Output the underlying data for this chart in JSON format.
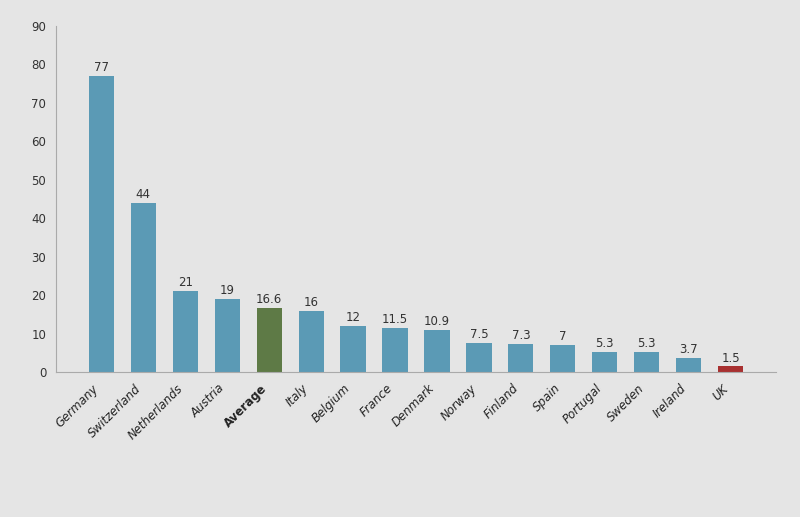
{
  "categories": [
    "Germany",
    "Switzerland",
    "Netherlands",
    "Austria",
    "Average",
    "Italy",
    "Belgium",
    "France",
    "Denmark",
    "Norway",
    "Finland",
    "Spain",
    "Portugal",
    "Sweden",
    "Ireland",
    "UK"
  ],
  "values": [
    77,
    44,
    21,
    19,
    16.6,
    16,
    12,
    11.5,
    10.9,
    7.5,
    7.3,
    7,
    5.3,
    5.3,
    3.7,
    1.5
  ],
  "labels": [
    "77",
    "44",
    "21",
    "19",
    "16.6",
    "16",
    "12",
    "11.5",
    "10.9",
    "7.5",
    "7.3",
    "7",
    "5.3",
    "5.3",
    "3.7",
    "1.5"
  ],
  "bar_colors": [
    "#5b9ab5",
    "#5b9ab5",
    "#5b9ab5",
    "#5b9ab5",
    "#5e7a46",
    "#5b9ab5",
    "#5b9ab5",
    "#5b9ab5",
    "#5b9ab5",
    "#5b9ab5",
    "#5b9ab5",
    "#5b9ab5",
    "#5b9ab5",
    "#5b9ab5",
    "#5b9ab5",
    "#a83030"
  ],
  "ylim": [
    0,
    90
  ],
  "yticks": [
    0,
    10,
    20,
    30,
    40,
    50,
    60,
    70,
    80,
    90
  ],
  "background_color": "#e5e5e5",
  "label_fontsize": 8.5,
  "tick_fontsize": 8.5,
  "bar_width": 0.6
}
